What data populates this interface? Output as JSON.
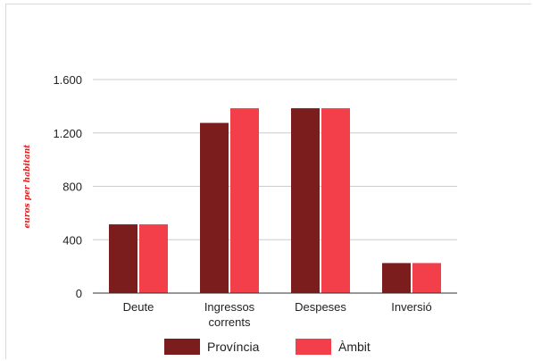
{
  "chart_data": {
    "type": "bar",
    "title": "",
    "xlabel": "",
    "ylabel": "euros per habitant",
    "categories": [
      [
        "Deute"
      ],
      [
        "Ingressos",
        "corrents"
      ],
      [
        "Despeses"
      ],
      [
        "Inversió"
      ]
    ],
    "category_names": [
      "Deute",
      "Ingressos corrents",
      "Despeses",
      "Inversió"
    ],
    "series": [
      {
        "name": "Província",
        "color": "#7b1d1d",
        "values": [
          515,
          1275,
          1385,
          225
        ]
      },
      {
        "name": "Àmbit",
        "color": "#f23f4a",
        "values": [
          515,
          1385,
          1385,
          225
        ]
      }
    ],
    "ylim": [
      0,
      1600
    ],
    "yticks": [
      0,
      400,
      800,
      1200,
      1600
    ],
    "ytick_labels": [
      "0",
      "400",
      "800",
      "1.200",
      "1.600"
    ],
    "grid": true,
    "legend_position": "bottom"
  }
}
